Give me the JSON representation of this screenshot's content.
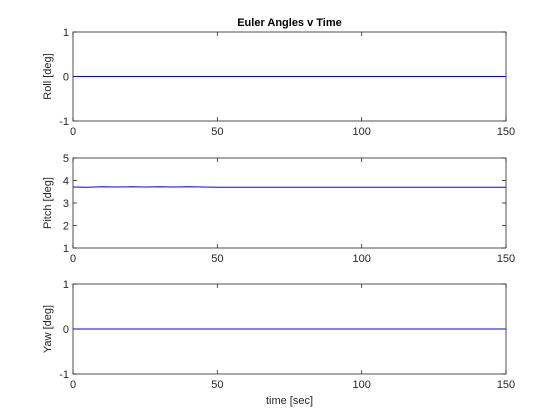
{
  "chart_data": [
    {
      "type": "line",
      "title": "Euler Angles v Time",
      "xlabel": "",
      "ylabel": "Roll [deg]",
      "xlim": [
        0,
        150
      ],
      "ylim": [
        -1,
        1
      ],
      "xticks": [
        0,
        50,
        100,
        150
      ],
      "yticks": [
        -1,
        0,
        1
      ],
      "grid": false,
      "series": [
        {
          "x": [
            0,
            150
          ],
          "values": [
            0,
            0
          ],
          "color": "#0000ff"
        }
      ]
    },
    {
      "type": "line",
      "title": "",
      "xlabel": "",
      "ylabel": "Pitch [deg]",
      "xlim": [
        0,
        150
      ],
      "ylim": [
        1,
        5
      ],
      "xticks": [
        0,
        50,
        100,
        150
      ],
      "yticks": [
        1,
        2,
        3,
        4,
        5
      ],
      "grid": false,
      "series": [
        {
          "x": [
            0,
            5,
            10,
            15,
            20,
            25,
            30,
            35,
            40,
            45,
            50,
            60,
            70,
            80,
            90,
            100,
            110,
            120,
            130,
            140,
            150
          ],
          "values": [
            3.71,
            3.7,
            3.72,
            3.71,
            3.72,
            3.71,
            3.72,
            3.71,
            3.72,
            3.71,
            3.7,
            3.7,
            3.7,
            3.7,
            3.7,
            3.7,
            3.7,
            3.7,
            3.7,
            3.7,
            3.7
          ],
          "color": "#0000ff"
        }
      ]
    },
    {
      "type": "line",
      "title": "",
      "xlabel": "time [sec]",
      "ylabel": "Yaw [deg]",
      "xlim": [
        0,
        150
      ],
      "ylim": [
        -1,
        1
      ],
      "xticks": [
        0,
        50,
        100,
        150
      ],
      "yticks": [
        -1,
        0,
        1
      ],
      "grid": false,
      "series": [
        {
          "x": [
            0,
            150
          ],
          "values": [
            0,
            0
          ],
          "color": "#0000ff"
        }
      ]
    }
  ]
}
